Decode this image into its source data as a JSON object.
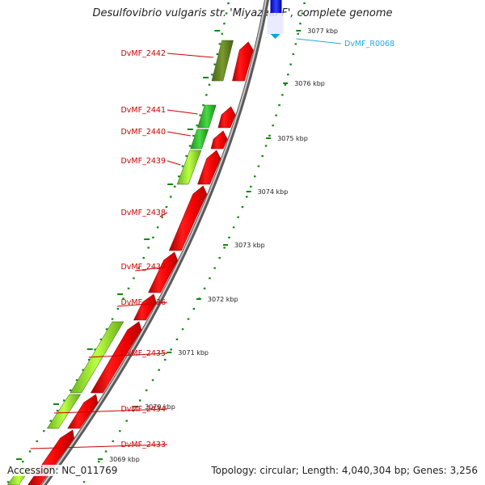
{
  "title": "Desulfovibrio vulgaris str. 'Miyazaki F', complete genome",
  "footer": {
    "accession": "Accession: NC_011769",
    "summary": "Topology: circular; Length: 4,040,304 bp; Genes: 3,256"
  },
  "colors": {
    "cds_forward": "#ee0000",
    "rna_feature": "#00aadd",
    "backbone": "#888888",
    "gc_dots": "#118811",
    "label_text": "#cc0000",
    "rna_label": "#22aadd"
  },
  "ticks": [
    {
      "label": "3077 kbp"
    },
    {
      "label": "3076 kbp"
    },
    {
      "label": "3075 kbp"
    },
    {
      "label": "3074 kbp"
    },
    {
      "label": "3073 kbp"
    },
    {
      "label": "3072 kbp"
    },
    {
      "label": "3071 kbp"
    },
    {
      "label": "3070 kbp"
    },
    {
      "label": "3069 kbp"
    }
  ],
  "genes": [
    {
      "label": "DvMF_2442"
    },
    {
      "label": "DvMF_2441"
    },
    {
      "label": "DvMF_2440"
    },
    {
      "label": "DvMF_2439"
    },
    {
      "label": "DvMF_2438"
    },
    {
      "label": "DvMF_2437"
    },
    {
      "label": "DvMF_2436"
    },
    {
      "label": "DvMF_2435"
    },
    {
      "label": "DvMF_2434"
    },
    {
      "label": "DvMF_2433"
    }
  ],
  "rna_feature": {
    "label": "DvMF_R0068"
  }
}
